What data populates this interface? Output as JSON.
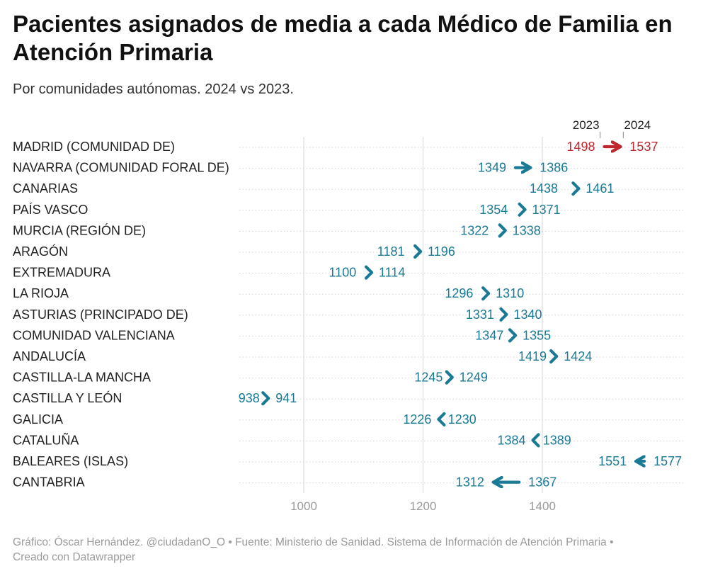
{
  "title": "Pacientes asignados de media a cada Médico de Familia en Atención Primaria",
  "subtitle": "Por comunidades autónomas. 2024 vs 2023.",
  "footer": {
    "line1": "Gráfico: Óscar Hernández. @ciudadanO_O • Fuente: Ministerio de Sanidad. Sistema de Información de Atención Primaria •",
    "line2": "Creado con Datawrapper"
  },
  "colors": {
    "highlight": "#c0272d",
    "default": "#1a7a96",
    "grid": "#dddddd",
    "tick": "#9a9a9a"
  },
  "chart_data": {
    "type": "arrow-dot-plot",
    "title": "Pacientes asignados de media a cada Médico de Familia en Atención Primaria",
    "subtitle": "Por comunidades autónomas. 2024 vs 2023.",
    "series_labels": {
      "start": "2023",
      "end": "2024"
    },
    "xlim": [
      900,
      1620
    ],
    "xticks": [
      1000,
      1200,
      1400
    ],
    "rows": [
      {
        "name": "MADRID (COMUNIDAD DE)",
        "v2023": 1498,
        "v2024": 1537,
        "highlight": true
      },
      {
        "name": "NAVARRA (COMUNIDAD FORAL DE)",
        "v2023": 1349,
        "v2024": 1386
      },
      {
        "name": "CANARIAS",
        "v2023": 1438,
        "v2024": 1461
      },
      {
        "name": "PAÍS VASCO",
        "v2023": 1354,
        "v2024": 1371
      },
      {
        "name": "MURCIA (REGIÓN DE)",
        "v2023": 1322,
        "v2024": 1338
      },
      {
        "name": "ARAGÓN",
        "v2023": 1181,
        "v2024": 1196
      },
      {
        "name": "EXTREMADURA",
        "v2023": 1100,
        "v2024": 1114
      },
      {
        "name": "LA RIOJA",
        "v2023": 1296,
        "v2024": 1310
      },
      {
        "name": "ASTURIAS (PRINCIPADO DE)",
        "v2023": 1331,
        "v2024": 1340
      },
      {
        "name": "COMUNIDAD VALENCIANA",
        "v2023": 1347,
        "v2024": 1355
      },
      {
        "name": "ANDALUCÍA",
        "v2023": 1419,
        "v2024": 1424
      },
      {
        "name": "CASTILLA-LA MANCHA",
        "v2023": 1245,
        "v2024": 1249
      },
      {
        "name": "CASTILLA Y LEÓN",
        "v2023": 938,
        "v2024": 941
      },
      {
        "name": "GALICIA",
        "v2023": 1230,
        "v2024": 1226
      },
      {
        "name": "CATALUÑA",
        "v2023": 1389,
        "v2024": 1384
      },
      {
        "name": "BALEARES (ISLAS)",
        "v2023": 1577,
        "v2024": 1551
      },
      {
        "name": "CANTABRIA",
        "v2023": 1367,
        "v2024": 1312
      }
    ]
  }
}
